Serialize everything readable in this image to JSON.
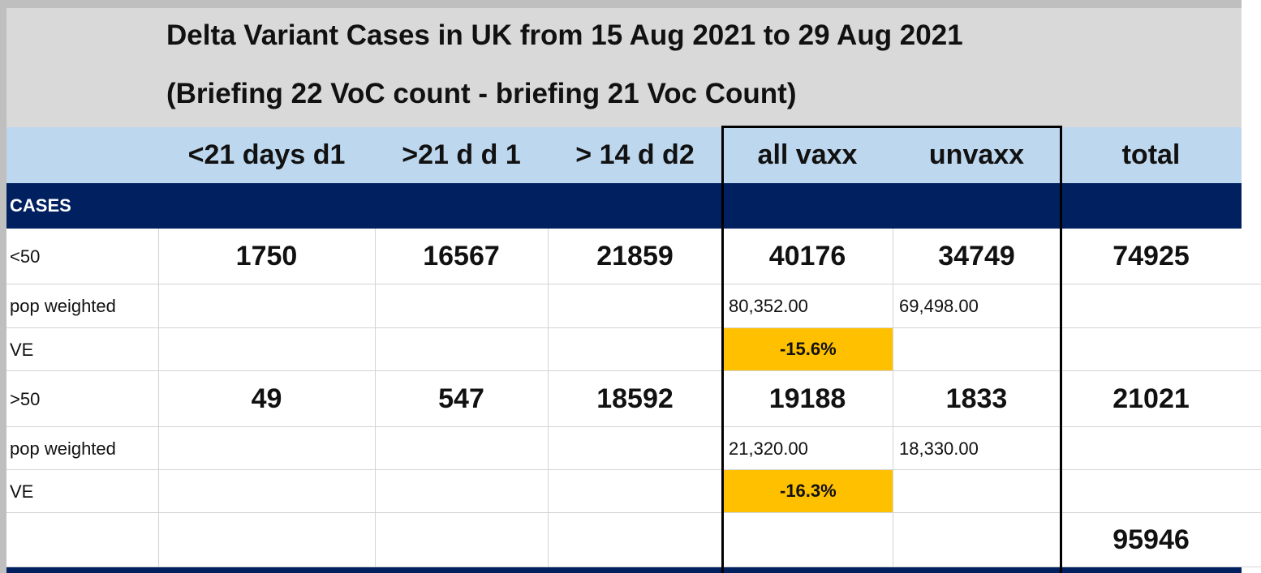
{
  "table": {
    "title": [
      "Delta Variant Cases in UK from 15 Aug 2021 to 29 Aug 2021",
      "(Briefing 22 VoC count - briefing 21 Voc Count)"
    ],
    "headers": [
      "<21 days d1",
      ">21 d d 1",
      "> 14 d d2",
      "all vaxx",
      "unvaxx",
      "total"
    ],
    "rows": [
      {
        "label": "CASES",
        "cells": [
          null,
          null,
          null,
          null,
          null,
          null
        ]
      },
      {
        "label": "<50",
        "cells": [
          "1750",
          "16567",
          "21859",
          "40176",
          "34749",
          "74925"
        ]
      },
      {
        "label": "pop weighted",
        "cells": [
          null,
          null,
          null,
          "80,352.00",
          "69,498.00",
          null
        ]
      },
      {
        "label": "VE",
        "cells": [
          null,
          null,
          null,
          "-15.6%",
          null,
          null
        ]
      },
      {
        "label": ">50",
        "cells": [
          "49",
          "547",
          "18592",
          "19188",
          "1833",
          "21021"
        ]
      },
      {
        "label": "pop weighted",
        "cells": [
          null,
          null,
          null,
          "21,320.00",
          "18,330.00",
          null
        ]
      },
      {
        "label": "VE",
        "cells": [
          null,
          null,
          null,
          "-16.3%",
          null,
          null
        ]
      },
      {
        "label": null,
        "cells": [
          null,
          null,
          null,
          null,
          null,
          "95946"
        ]
      }
    ]
  }
}
